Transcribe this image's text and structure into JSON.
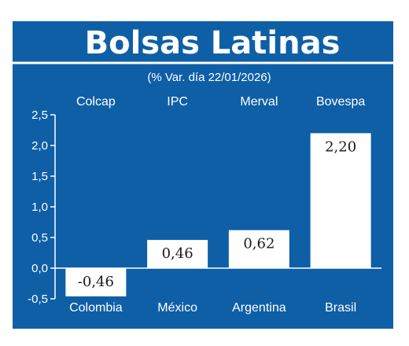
{
  "chart_data": {
    "type": "bar",
    "title": "Bolsas Latinas",
    "subtitle": "(% Var. día 22/01/2026)",
    "index_names": [
      "Colcap",
      "IPC",
      "Merval",
      "Bovespa"
    ],
    "categories": [
      "Colombia",
      "México",
      "Argentina",
      "Brasil"
    ],
    "values": [
      -0.46,
      0.46,
      0.62,
      2.2
    ],
    "value_labels": [
      "-0,46",
      "0,46",
      "0,62",
      "2,20"
    ],
    "yticks": [
      "-0,5",
      "0,0",
      "0,5",
      "1,0",
      "1,5",
      "2,0",
      "2,5"
    ],
    "ylim": [
      -0.5,
      2.5
    ],
    "grid": false,
    "colors": {
      "background": "#0f5fa7",
      "bar": "#ffffff",
      "text": "#ffffff",
      "bar_text": "#1a1a1a"
    }
  }
}
